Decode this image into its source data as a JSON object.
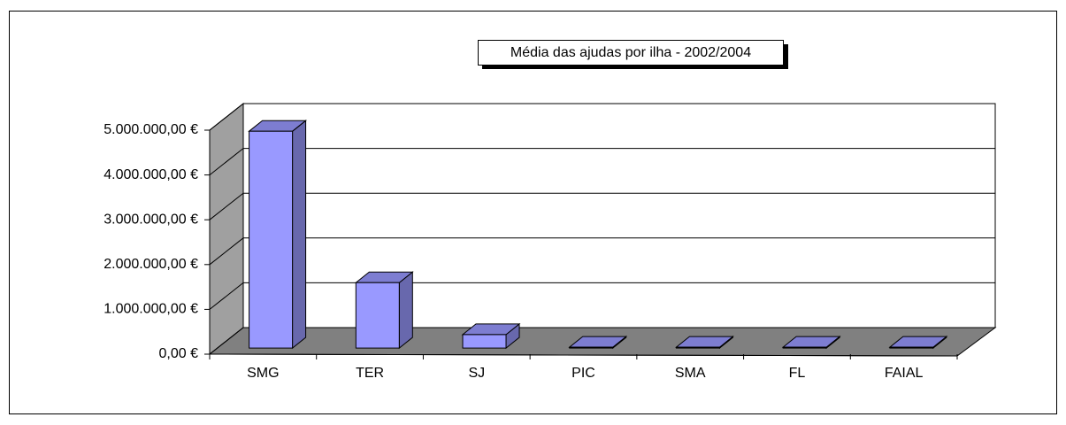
{
  "chart_data": {
    "type": "bar3d",
    "title": "Média das ajudas por ilha - 2002/2004",
    "categories": [
      "SMG",
      "TER",
      "SJ",
      "PIC",
      "SMA",
      "FL",
      "FAIAL"
    ],
    "values": [
      4840000,
      1460000,
      300000,
      20000,
      20000,
      20000,
      20000
    ],
    "color": "#9999ff",
    "ylim": [
      0,
      5000000
    ],
    "yticks": [
      {
        "value": 0,
        "label": "0,00 €"
      },
      {
        "value": 1000000,
        "label": "1.000.000,00 €"
      },
      {
        "value": 2000000,
        "label": "2.000.000,00 €"
      },
      {
        "value": 3000000,
        "label": "3.000.000,00 €"
      },
      {
        "value": 4000000,
        "label": "4.000.000,00 €"
      },
      {
        "value": 5000000,
        "label": "5.000.000,00 €"
      }
    ],
    "grid": true
  }
}
